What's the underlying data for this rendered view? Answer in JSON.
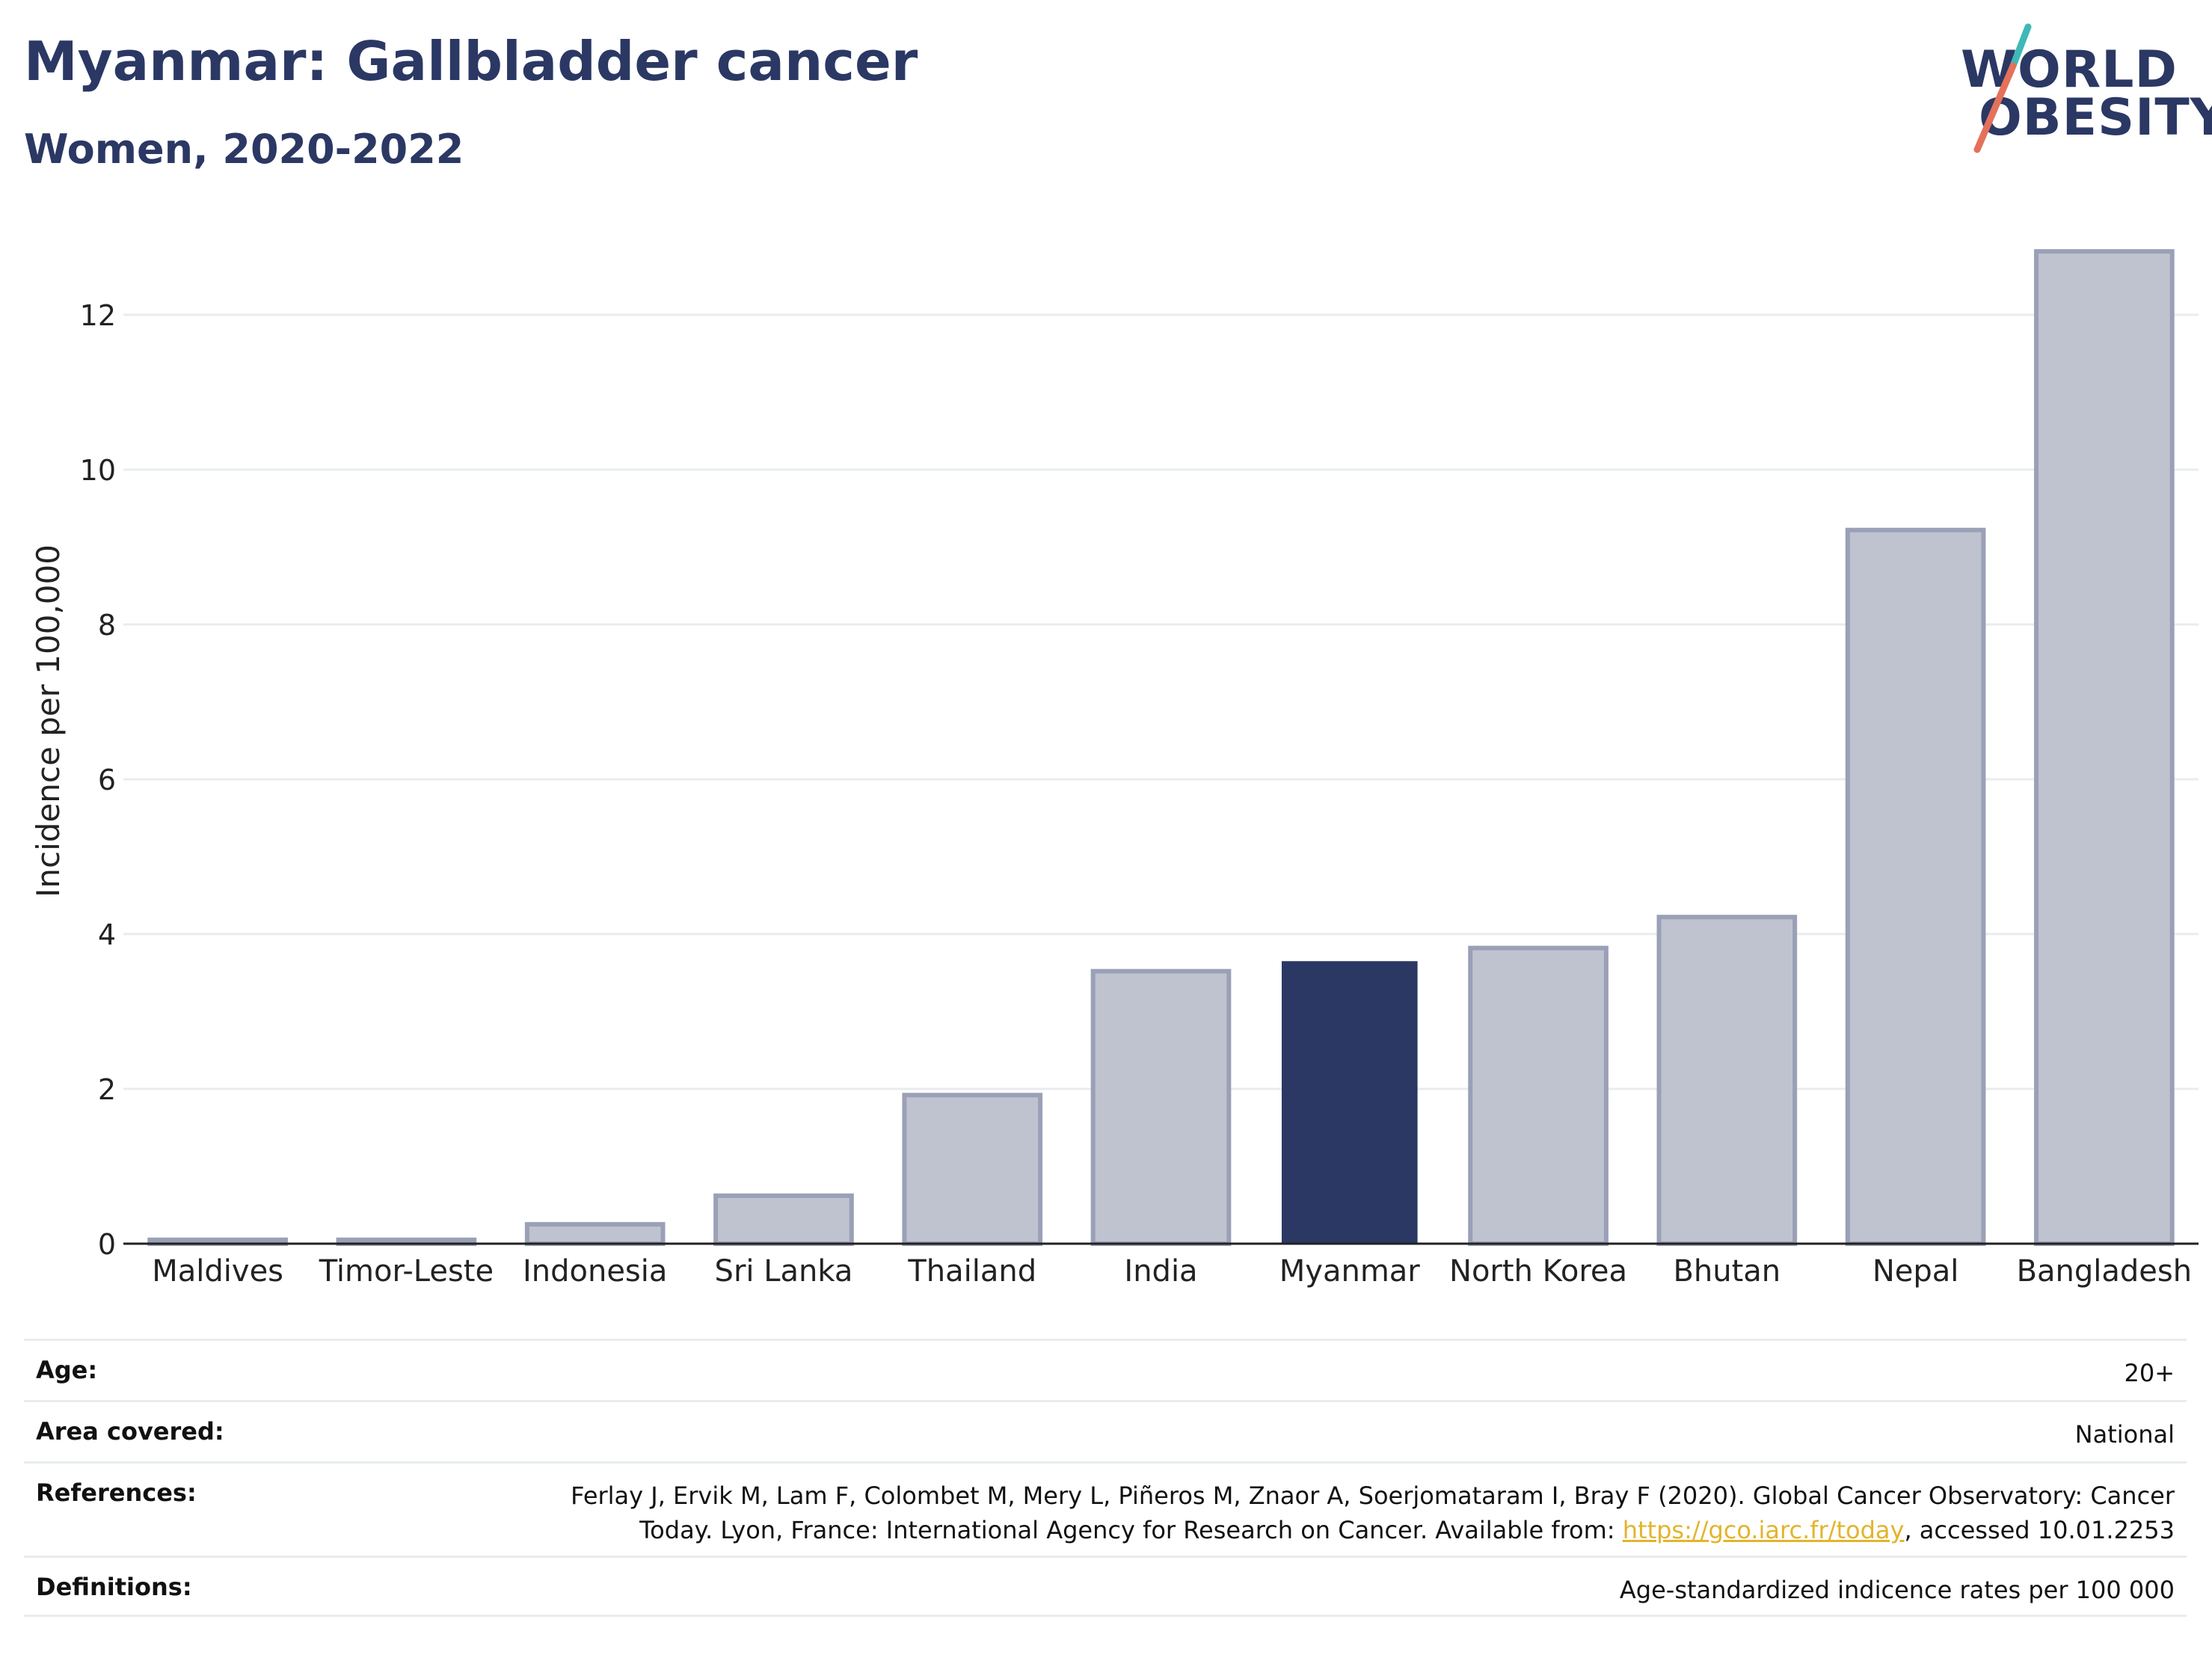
{
  "title": "Myanmar: Gallbladder cancer",
  "subtitle": "Women, 2020-2022",
  "logo": {
    "line1": "WORLD",
    "line2": "OBESITY"
  },
  "colors": {
    "highlight": "#2b3864",
    "bar": "#bfc3d0",
    "bar_stroke": "#9aa0b6",
    "grid": "#e8ecef",
    "link": "#e3b42c"
  },
  "chart_data": {
    "type": "bar",
    "categories": [
      "Maldives",
      "Timor-Leste",
      "Indonesia",
      "Sri Lanka",
      "Thailand",
      "India",
      "Myanmar",
      "North Korea",
      "Bhutan",
      "Nepal",
      "Bangladesh"
    ],
    "values": [
      0.05,
      0.05,
      0.25,
      0.62,
      1.92,
      3.52,
      3.65,
      3.82,
      4.22,
      9.22,
      12.82
    ],
    "highlight": "Myanmar",
    "ylabel": "Incidence per 100,000",
    "yticks": [
      0,
      2,
      4,
      6,
      8,
      10,
      12
    ],
    "ylim": [
      0,
      13.2
    ],
    "grid": true
  },
  "table": {
    "age": {
      "label": "Age:",
      "value": "20+"
    },
    "area": {
      "label": "Area covered:",
      "value": "National"
    },
    "references": {
      "label": "References:",
      "line1": "Ferlay J, Ervik M, Lam F, Colombet M, Mery L, Piñeros M, Znaor A, Soerjomataram I, Bray F (2020). Global Cancer Observatory: Cancer",
      "line2_pre": "Today. Lyon, France: International Agency for Research on Cancer. Available from: ",
      "link": "https://gco.iarc.fr/today",
      "line2_post": ", accessed 10.01.2253"
    },
    "definitions": {
      "label": "Definitions:",
      "value": "Age-standardized indicence rates per 100 000"
    }
  }
}
